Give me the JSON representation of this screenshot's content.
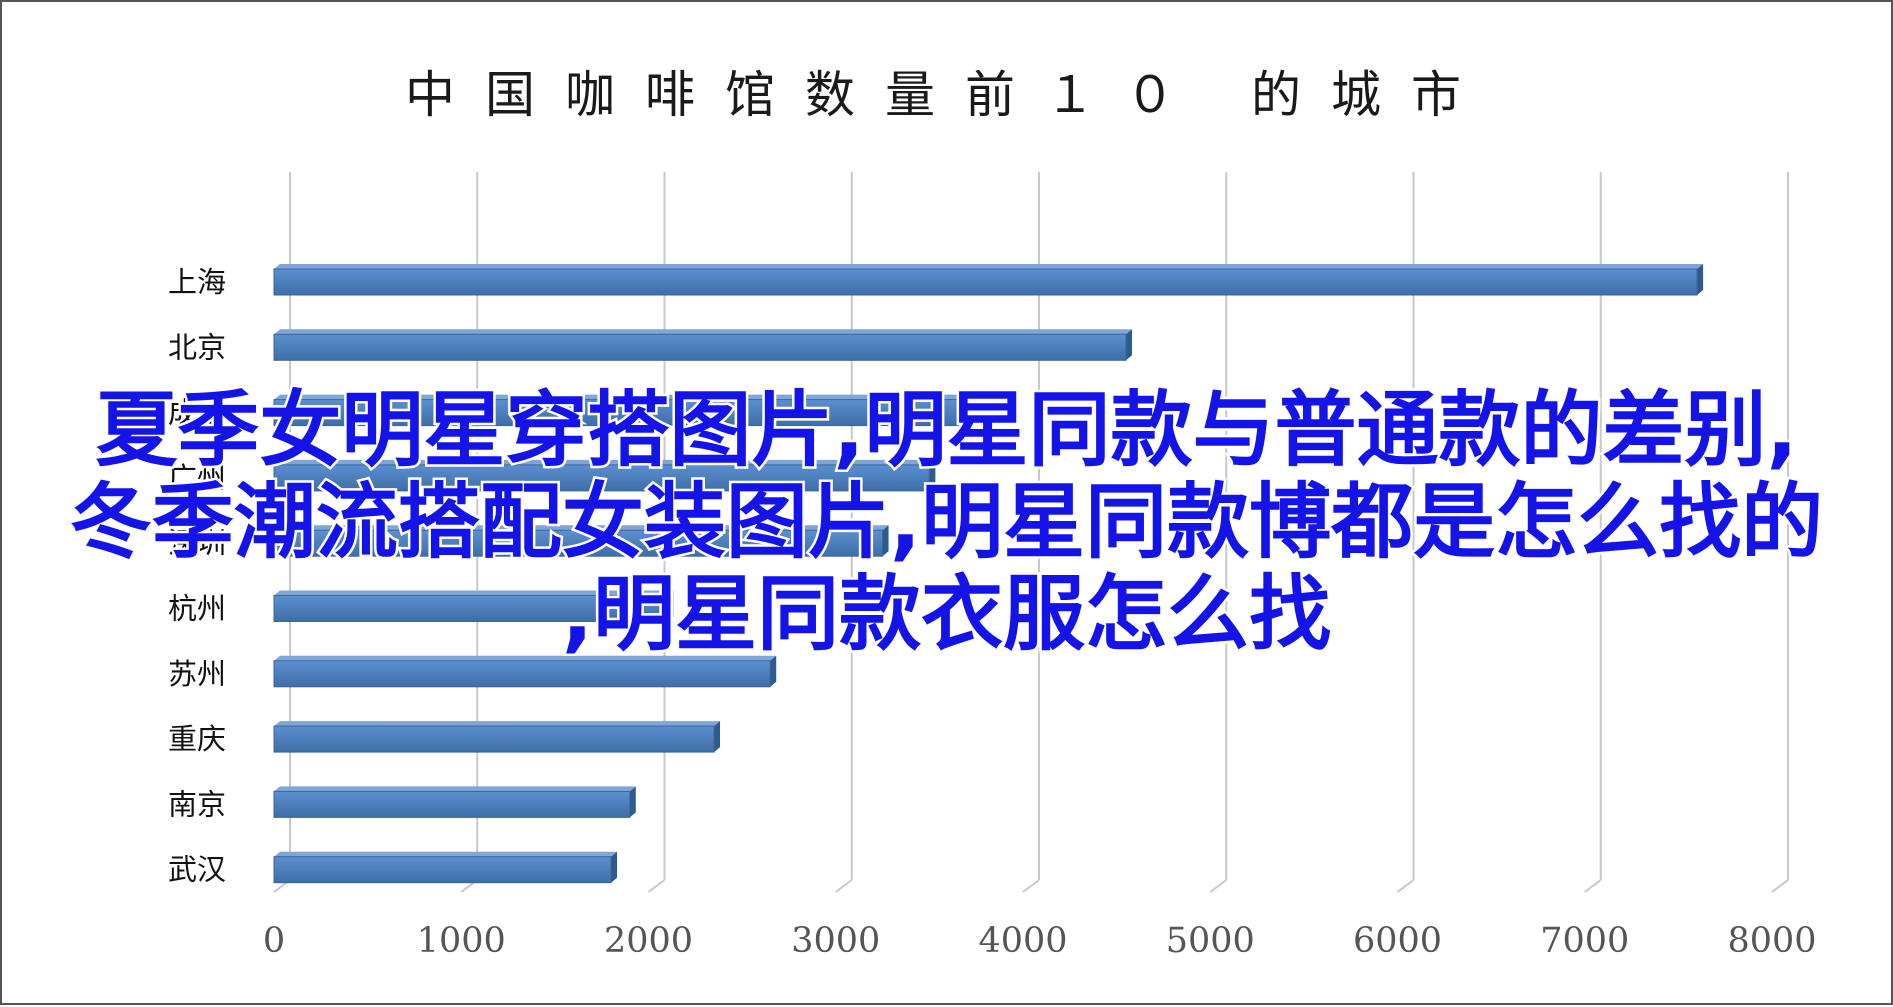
{
  "overlay": {
    "line1": "夏季女明星穿搭图片,明星同款与普通款的差别,",
    "line2": "冬季潮流搭配女装图片,明星同款博都是怎么找的",
    "line3": ",明星同款衣服怎么找"
  },
  "chart_data": {
    "type": "bar",
    "orientation": "horizontal",
    "title": "中国咖啡馆数量前１０ 的城市",
    "categories": [
      "上海",
      "北京",
      "成都",
      "广州",
      "深圳",
      "杭州",
      "苏州",
      "重庆",
      "南京",
      "武汉"
    ],
    "values": [
      7600,
      4550,
      3680,
      3500,
      3250,
      2100,
      2650,
      2350,
      1900,
      1800
    ],
    "xlim": [
      0,
      8000
    ],
    "xticks": [
      "0",
      "1000",
      "2000",
      "3000",
      "4000",
      "5000",
      "6000",
      "7000",
      "8000"
    ],
    "grid": true,
    "bar_color": "#4f81bd"
  }
}
